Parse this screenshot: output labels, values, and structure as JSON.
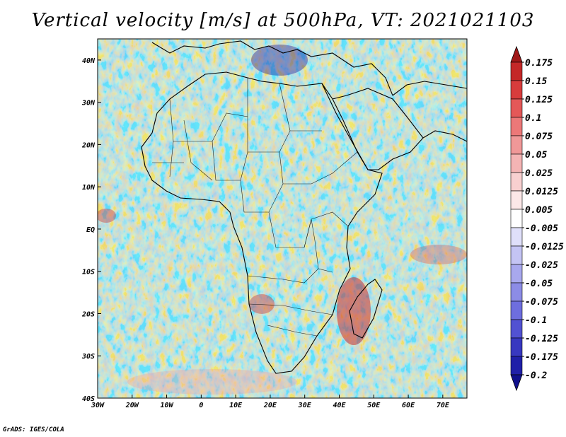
{
  "title": "Vertical velocity [m/s] at 500hPa, VT: 2021021103",
  "credit": "GrADS: IGES/COLA",
  "map": {
    "lon_range": [
      -30,
      77
    ],
    "lat_range": [
      -40,
      45
    ],
    "lon_ticks": [
      {
        "value": -30,
        "label": "30W"
      },
      {
        "value": -20,
        "label": "20W"
      },
      {
        "value": -10,
        "label": "10W"
      },
      {
        "value": 0,
        "label": "0"
      },
      {
        "value": 10,
        "label": "10E"
      },
      {
        "value": 20,
        "label": "20E"
      },
      {
        "value": 30,
        "label": "30E"
      },
      {
        "value": 40,
        "label": "40E"
      },
      {
        "value": 50,
        "label": "50E"
      },
      {
        "value": 60,
        "label": "60E"
      },
      {
        "value": 70,
        "label": "70E"
      }
    ],
    "lat_ticks": [
      {
        "value": 40,
        "label": "40N"
      },
      {
        "value": 30,
        "label": "30N"
      },
      {
        "value": 20,
        "label": "20N"
      },
      {
        "value": 10,
        "label": "10N"
      },
      {
        "value": 0,
        "label": "EQ"
      },
      {
        "value": -10,
        "label": "10S"
      },
      {
        "value": -20,
        "label": "20S"
      },
      {
        "value": -30,
        "label": "30S"
      },
      {
        "value": -40,
        "label": "40S"
      }
    ]
  },
  "colorbar": {
    "levels": [
      "0.175",
      "0.15",
      "0.125",
      "0.1",
      "0.075",
      "0.05",
      "0.025",
      "0.0125",
      "0.005",
      "-0.005",
      "-0.0125",
      "-0.025",
      "-0.05",
      "-0.075",
      "-0.1",
      "-0.125",
      "-0.175",
      "-0.2"
    ],
    "colors": [
      "#a01818",
      "#c42828",
      "#d83c3c",
      "#e45858",
      "#ec7878",
      "#f09898",
      "#f4b4b4",
      "#f8d0d0",
      "#fce8e8",
      "#ffffff",
      "#e0e0fa",
      "#c4c4f4",
      "#a8a8ee",
      "#8c8ce6",
      "#6e6ede",
      "#5252d2",
      "#3838c0",
      "#2020a8",
      "#10108c"
    ]
  }
}
